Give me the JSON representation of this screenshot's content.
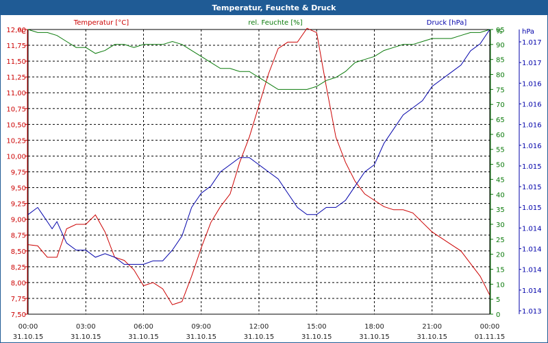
{
  "window": {
    "title": "Temperatur, Feuchte & Druck"
  },
  "colors": {
    "temperature": "#cc0000",
    "humidity": "#0a7a0a",
    "pressure": "#0000aa",
    "titlebar": "#1f5b95",
    "axis_text": "#1f1f1f"
  },
  "chart_data": {
    "type": "line",
    "grid": true,
    "xlim": [
      "31.10.15 00:00",
      "01.11.15 00:00"
    ],
    "x_ticks": [
      {
        "time": "00:00",
        "date": "31.10.15"
      },
      {
        "time": "03:00",
        "date": "31.10.15"
      },
      {
        "time": "06:00",
        "date": "31.10.15"
      },
      {
        "time": "09:00",
        "date": "31.10.15"
      },
      {
        "time": "12:00",
        "date": "31.10.15"
      },
      {
        "time": "15:00",
        "date": "31.10.15"
      },
      {
        "time": "18:00",
        "date": "31.10.15"
      },
      {
        "time": "21:00",
        "date": "31.10.15"
      },
      {
        "time": "00:00",
        "date": "01.11.15"
      }
    ],
    "axes": {
      "temperature": {
        "unit_label": "°C",
        "ylim": [
          7.5,
          12.0
        ],
        "ticks": [
          "12,00",
          "11,75",
          "11,50",
          "11,25",
          "11,00",
          "10,75",
          "10,50",
          "10,25",
          "10,00",
          "9,75",
          "9,50",
          "9,25",
          "9,00",
          "8,75",
          "8,50",
          "8,25",
          "8,00",
          "7,75",
          "7,50"
        ]
      },
      "humidity": {
        "unit_label": "%",
        "ylim": [
          0,
          95
        ],
        "ticks": [
          "95",
          "90",
          "85",
          "80",
          "75",
          "70",
          "65",
          "60",
          "55",
          "50",
          "45",
          "40",
          "35",
          "30",
          "25",
          "20",
          "15",
          "10",
          "5",
          "0"
        ]
      },
      "pressure": {
        "unit_label": "hPa",
        "ylim": [
          1013,
          1017
        ],
        "ticks": [
          "1.017",
          "1.017",
          "1.016",
          "1.016",
          "1.016",
          "1.016",
          "1.015",
          "1.015",
          "1.015",
          "1.014",
          "1.014",
          "1.014",
          "1.014",
          "1.013"
        ]
      }
    },
    "series": [
      {
        "name": "Temperatur [°C]",
        "axis": "temperature",
        "x_hours": [
          0,
          0.5,
          1,
          1.5,
          2,
          2.5,
          3,
          3.5,
          4,
          4.5,
          5,
          5.5,
          6,
          6.5,
          7,
          7.5,
          8,
          8.5,
          9,
          9.5,
          10,
          10.5,
          11,
          11.5,
          12,
          12.5,
          13,
          13.5,
          14,
          14.5,
          15,
          15.5,
          16,
          16.5,
          17,
          17.5,
          18,
          18.5,
          19,
          19.5,
          20,
          20.5,
          21,
          21.5,
          22,
          22.5,
          23,
          23.5,
          24
        ],
        "values": [
          8.6,
          8.58,
          8.4,
          8.4,
          8.85,
          8.92,
          8.92,
          9.07,
          8.8,
          8.4,
          8.35,
          8.2,
          7.95,
          8.0,
          7.9,
          7.65,
          7.7,
          8.1,
          8.55,
          8.95,
          9.2,
          9.4,
          9.9,
          10.3,
          10.8,
          11.3,
          11.7,
          11.8,
          11.8,
          12.02,
          11.95,
          11.1,
          10.3,
          9.9,
          9.6,
          9.4,
          9.3,
          9.2,
          9.15,
          9.15,
          9.1,
          8.95,
          8.8,
          8.7,
          8.6,
          8.5,
          8.3,
          8.1,
          7.8
        ]
      },
      {
        "name": "rel. Feuchte [%]",
        "axis": "humidity",
        "x_hours": [
          0,
          0.5,
          1,
          1.5,
          2,
          2.5,
          3,
          3.5,
          4,
          4.5,
          5,
          5.5,
          6,
          6.5,
          7,
          7.5,
          8,
          8.5,
          9,
          9.5,
          10,
          10.5,
          11,
          11.5,
          12,
          12.5,
          13,
          13.5,
          14,
          14.5,
          15,
          15.5,
          16,
          16.5,
          17,
          17.5,
          18,
          18.5,
          19,
          19.5,
          20,
          20.5,
          21,
          21.5,
          22,
          22.5,
          23,
          23.5,
          24
        ],
        "values": [
          95,
          94,
          94,
          93,
          91,
          89,
          89,
          87,
          88,
          90,
          90,
          89,
          90,
          90,
          90,
          91,
          90,
          88,
          86,
          84,
          82,
          82,
          81,
          81,
          79,
          77,
          75,
          75,
          75,
          75,
          76,
          78,
          79,
          81,
          84,
          85,
          86,
          88,
          89,
          90,
          90,
          91,
          92,
          92,
          92,
          93,
          94,
          94,
          95
        ]
      },
      {
        "name": "Druck [hPa]",
        "axis": "pressure",
        "x_hours": [
          0,
          0.5,
          0.75,
          1,
          1.25,
          1.5,
          2,
          2.5,
          3,
          3.5,
          4,
          4.5,
          5,
          5.5,
          6,
          6.5,
          7,
          7.5,
          8,
          8.5,
          8.75,
          9,
          9.5,
          10,
          10.5,
          11,
          11.5,
          12,
          12.5,
          13,
          13.5,
          14,
          14.5,
          15,
          15.5,
          16,
          16.5,
          17,
          17.5,
          18,
          18.5,
          19,
          19.5,
          20,
          20.5,
          21,
          21.5,
          22,
          22.5,
          23,
          23.5,
          24
        ],
        "values": [
          1014.4,
          1014.5,
          1014.4,
          1014.3,
          1014.2,
          1014.3,
          1014.0,
          1013.9,
          1013.9,
          1013.8,
          1013.85,
          1013.8,
          1013.7,
          1013.7,
          1013.7,
          1013.75,
          1013.75,
          1013.9,
          1014.1,
          1014.5,
          1014.6,
          1014.7,
          1014.8,
          1015.0,
          1015.1,
          1015.2,
          1015.2,
          1015.1,
          1015.0,
          1014.9,
          1014.7,
          1014.5,
          1014.4,
          1014.4,
          1014.5,
          1014.5,
          1014.6,
          1014.8,
          1015.0,
          1015.1,
          1015.4,
          1015.6,
          1015.8,
          1015.9,
          1016.0,
          1016.2,
          1016.3,
          1016.4,
          1016.5,
          1016.7,
          1016.8,
          1017.0
        ]
      }
    ]
  }
}
